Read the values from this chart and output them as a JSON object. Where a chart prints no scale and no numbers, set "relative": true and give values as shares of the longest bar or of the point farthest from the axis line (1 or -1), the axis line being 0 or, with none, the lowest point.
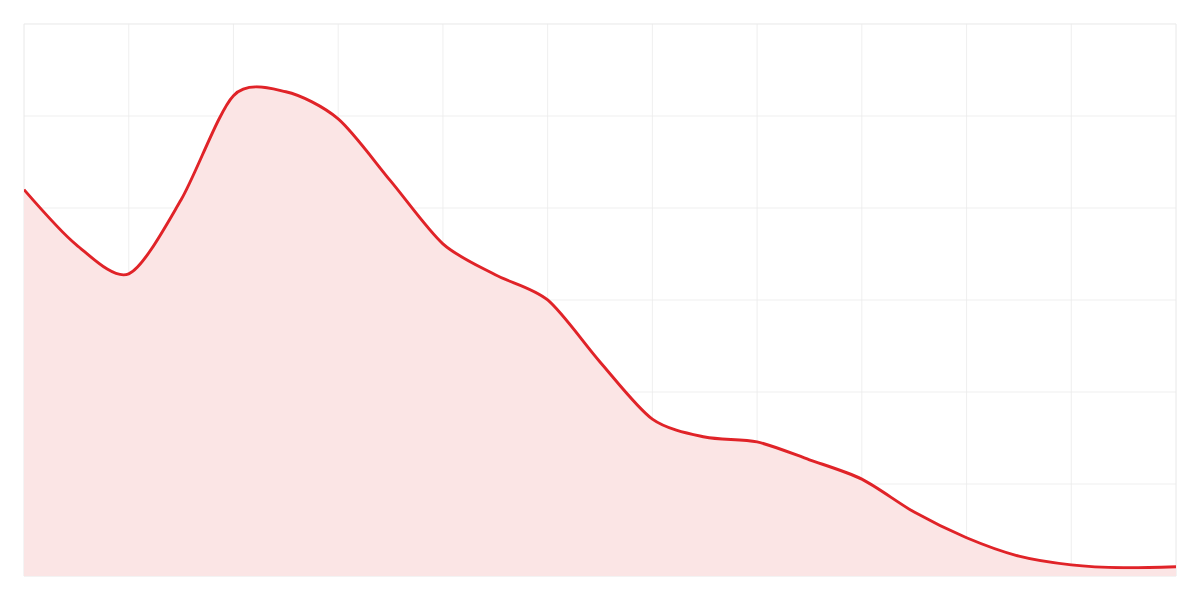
{
  "chart_data": {
    "type": "area",
    "relative": true,
    "grid": true,
    "color": "#e02328",
    "categories": [
      null,
      null,
      null,
      null,
      null,
      null,
      null,
      null,
      null,
      null,
      null,
      null,
      null,
      null,
      null,
      null,
      null,
      null,
      null,
      null,
      null,
      null,
      null
    ],
    "values": [
      0.798,
      0.684,
      0.624,
      0.777,
      0.992,
      1,
      0.944,
      0.816,
      0.686,
      0.622,
      0.57,
      0.442,
      0.324,
      0.287,
      0.277,
      0.24,
      0.2,
      0.132,
      0.079,
      0.041,
      0.023,
      0.017,
      0.019
    ]
  }
}
